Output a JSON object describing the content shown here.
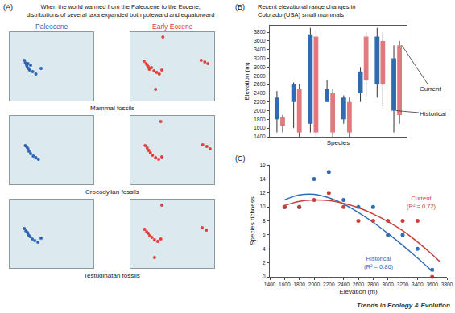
{
  "footer": "Trends in Ecology & Evolution",
  "chart_data": [
    {
      "type": "scatter",
      "panel": "(A)",
      "title": [
        "When the world warmed from the Paleocene to the Eocene,",
        "distributions of several taxa expanded both poleward and equatorward"
      ],
      "series": [
        {
          "name": "Paleocene",
          "color": "#2f64b3"
        },
        {
          "name": "Early Eocene",
          "color": "#e0403a"
        }
      ],
      "xlim": [
        -140,
        20
      ],
      "ylim": [
        0,
        85
      ],
      "tick_labels": false,
      "grid": false,
      "marker": "circle",
      "rows": [
        {
          "label": "Mammal fossils",
          "points": [
            {
              "x": [
                -112,
                -110,
                -108,
                -107,
                -105,
                -104,
                -102,
                -100,
                -96,
                -90,
                -80
              ],
              "y": [
                50,
                47,
                45,
                43,
                46,
                40,
                38,
                44,
                36,
                33,
                40
              ]
            },
            {
              "x": [
                -114,
                -110,
                -108,
                -106,
                -104,
                -100,
                -95,
                -90,
                -85,
                -80,
                -78,
                -92,
                -5,
                2,
                8
              ],
              "y": [
                49,
                46,
                44,
                42,
                39,
                41,
                37,
                35,
                33,
                38,
                79,
                14,
                50,
                48,
                46
              ]
            }
          ]
        },
        {
          "label": "Crocodylian fossils",
          "points": [
            {
              "x": [
                -110,
                -107,
                -105,
                -103,
                -100,
                -95,
                -90,
                -85
              ],
              "y": [
                48,
                46,
                44,
                41,
                38,
                35,
                33,
                31
              ]
            },
            {
              "x": [
                -112,
                -108,
                -105,
                -102,
                -98,
                -92,
                -86,
                -80,
                -82,
                -2,
                6,
                12
              ],
              "y": [
                48,
                45,
                42,
                39,
                36,
                33,
                31,
                34,
                78,
                49,
                47,
                44
              ]
            }
          ]
        },
        {
          "label": "Testudinatan fossils",
          "points": [
            {
              "x": [
                -112,
                -109,
                -106,
                -104,
                -101,
                -97,
                -92,
                -86,
                -80
              ],
              "y": [
                49,
                46,
                44,
                41,
                39,
                36,
                34,
                32,
                37
              ]
            },
            {
              "x": [
                -113,
                -109,
                -106,
                -103,
                -99,
                -94,
                -88,
                -82,
                -80,
                -94,
                -3,
                5
              ],
              "y": [
                48,
                45,
                43,
                40,
                38,
                35,
                33,
                36,
                78,
                13,
                50,
                47
              ]
            }
          ]
        }
      ]
    },
    {
      "type": "range_box",
      "panel": "(B)",
      "title": [
        "Recent elevational range changes in",
        "Colorado (USA) small mammals"
      ],
      "x_label": "Species",
      "y_label": "Elevation (m)",
      "categories": [
        null,
        null,
        null,
        null,
        null,
        null,
        null,
        null
      ],
      "ylim": [
        1400,
        3950
      ],
      "yticks": [
        1400,
        1600,
        1800,
        2000,
        2200,
        2400,
        2600,
        2800,
        3000,
        3200,
        3400,
        3600,
        3800
      ],
      "tick_labels": "y",
      "grid": false,
      "series": [
        {
          "name": "Historical",
          "color": "#2f6bb3",
          "box_low": [
            1800,
            2200,
            1700,
            2200,
            1800,
            2400,
            2600,
            2000
          ],
          "box_high": [
            2300,
            2600,
            3750,
            2500,
            2300,
            2900,
            3700,
            3200
          ],
          "whisker_low": [
            1500,
            1600,
            1500,
            2200,
            1700,
            2200,
            2300,
            1500
          ],
          "whisker_high": [
            2450,
            2650,
            3900,
            2700,
            2350,
            3000,
            3900,
            3500
          ]
        },
        {
          "name": "Current",
          "color": "#e07a7c",
          "box_low": [
            1650,
            1500,
            1500,
            1500,
            1500,
            2700,
            2600,
            1900
          ],
          "box_high": [
            1850,
            2500,
            3700,
            2400,
            2200,
            3700,
            3600,
            3500
          ],
          "whisker_low": [
            1500,
            1400,
            1400,
            1400,
            1400,
            2300,
            2100,
            1700
          ],
          "whisker_high": [
            1900,
            2600,
            3850,
            2500,
            2300,
            3800,
            3800,
            3600
          ]
        }
      ]
    },
    {
      "type": "scatter",
      "panel": "(C)",
      "x_label": "Elevation (m)",
      "y_label": "Species richness",
      "xlim": [
        1400,
        3800
      ],
      "xticks": [
        1400,
        1600,
        1800,
        2000,
        2200,
        2400,
        2600,
        2800,
        3000,
        3200,
        3400,
        3600,
        3800
      ],
      "ylim": [
        0,
        16
      ],
      "yticks": [
        0,
        2,
        4,
        6,
        8,
        10,
        12,
        14,
        16
      ],
      "grid": false,
      "marker": "circle",
      "series": [
        {
          "name": "Historical",
          "color": "#2e6db4",
          "fit_label": "(R² = 0.86)",
          "x": [
            1600,
            1800,
            2000,
            2200,
            2400,
            2600,
            2800,
            3000,
            3200,
            3400,
            3600
          ],
          "values": [
            10,
            10,
            14,
            15,
            11,
            10,
            10,
            6,
            6,
            4,
            1
          ],
          "fit_x": [
            1600,
            1800,
            2000,
            2200,
            2400,
            2600,
            2800,
            3000,
            3200,
            3400,
            3600
          ],
          "fit_values": [
            11,
            11.7,
            11.8,
            11.3,
            10.4,
            9.2,
            7.8,
            6.2,
            4.5,
            2.7,
            0.8
          ]
        },
        {
          "name": "Current",
          "color": "#c8403a",
          "fit_label": "(R² = 0.72)",
          "x": [
            1600,
            1800,
            2000,
            2200,
            2400,
            2600,
            2800,
            3000,
            3200,
            3400,
            3600
          ],
          "values": [
            10,
            10,
            11,
            12,
            10,
            8,
            8,
            8,
            8,
            8,
            0
          ],
          "fit_x": [
            1600,
            1800,
            2000,
            2200,
            2400,
            2600,
            2800,
            3000,
            3200,
            3400,
            3600,
            3700
          ],
          "fit_values": [
            10.2,
            10.8,
            11,
            10.9,
            10.5,
            9.9,
            9,
            7.9,
            6.6,
            5,
            3.2,
            2.2
          ]
        }
      ]
    }
  ]
}
